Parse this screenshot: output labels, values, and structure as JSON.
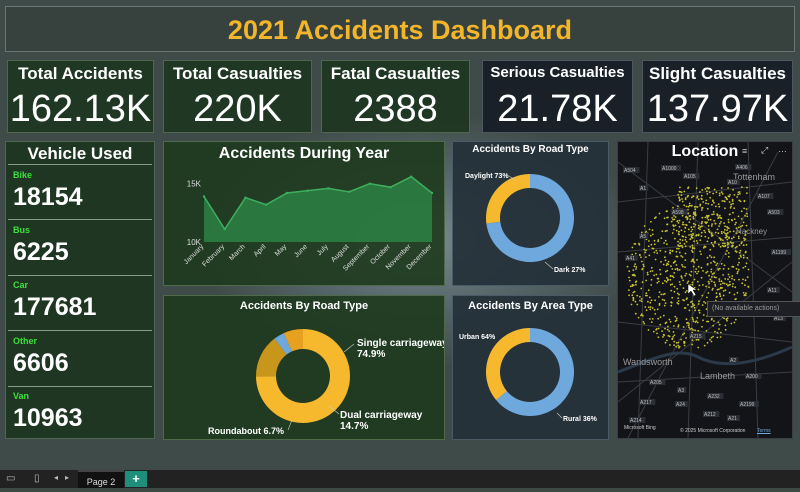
{
  "dashboard": {
    "title": "2021 Accidents Dashboard"
  },
  "kpis": [
    {
      "label": "Total Accidents",
      "value": "162.13K"
    },
    {
      "label": "Total Casualties",
      "value": "220K"
    },
    {
      "label": "Fatal Casualties",
      "value": "2388"
    },
    {
      "label": "Serious Casualties",
      "value": "21.78K"
    },
    {
      "label": "Slight Casualties",
      "value": "137.97K"
    }
  ],
  "vehicles": {
    "title": "Vehicle Used",
    "items": [
      {
        "name": "Bike",
        "value": "18154"
      },
      {
        "name": "Bus",
        "value": "6225"
      },
      {
        "name": "Car",
        "value": "177681"
      },
      {
        "name": "Other",
        "value": "6606"
      },
      {
        "name": "Van",
        "value": "10963"
      }
    ]
  },
  "chart_data": [
    {
      "type": "area",
      "title": "Accidents During Year",
      "categories": [
        "January",
        "February",
        "March",
        "April",
        "May",
        "June",
        "July",
        "August",
        "September",
        "October",
        "November",
        "December"
      ],
      "values": [
        13.9,
        11.1,
        13.8,
        13.2,
        14.2,
        14.4,
        14.6,
        14.3,
        15.0,
        14.7,
        15.6,
        14.2
      ],
      "ytick_labels": [
        "15K",
        "10K"
      ],
      "yticks": [
        15,
        10
      ],
      "ylim": [
        10,
        16
      ],
      "color": "#2e8b4a",
      "grid": false
    },
    {
      "type": "pie",
      "title": "Accidents By Road Type",
      "donut": true,
      "slices": [
        {
          "label": "Daylight",
          "pct": "73%",
          "value": 73,
          "color": "#6fa8dc"
        },
        {
          "label": "Dark",
          "pct": "27%",
          "value": 27,
          "color": "#f6b92d"
        }
      ]
    },
    {
      "type": "pie",
      "title": "Accidents By Road Type",
      "donut": true,
      "slices": [
        {
          "label": "Single carriageway",
          "pct": "74.9%",
          "value": 74.9,
          "color": "#f6b92d"
        },
        {
          "label": "Dual carriageway",
          "pct": "14.7%",
          "value": 14.7,
          "color": "#c8961a"
        },
        {
          "label": "",
          "pct": "",
          "value": 3.7,
          "color": "#6fa8dc"
        },
        {
          "label": "Roundabout",
          "pct": "6.7%",
          "value": 6.7,
          "color": "#e8a020"
        }
      ]
    },
    {
      "type": "pie",
      "title": "Accidents By Area Type",
      "donut": true,
      "slices": [
        {
          "label": "Urban",
          "pct": "64%",
          "value": 64,
          "color": "#6fa8dc"
        },
        {
          "label": "Rural",
          "pct": "36%",
          "value": 36,
          "color": "#f6b92d"
        }
      ]
    }
  ],
  "map": {
    "title": "Location",
    "labels": [
      "Tottenham",
      "Hackney",
      "Wandsworth",
      "Lambeth"
    ],
    "road_labels": [
      "A504",
      "A1000",
      "A406",
      "A105",
      "A10",
      "A107",
      "A1",
      "A598",
      "A5",
      "A41",
      "A503",
      "A1199",
      "A11",
      "A13",
      "A3",
      "A205",
      "A217",
      "A24",
      "A214",
      "A2",
      "A232",
      "A2199",
      "A212",
      "A21",
      "A200",
      "A215"
    ],
    "tooltip": "(No available actions)",
    "attribution": "© 2025 Microsoft Corporation",
    "terms": "Terms",
    "provider": "Microsoft Bing",
    "dot_color": "#c9c230"
  },
  "footer": {
    "page_tab": "Page 2",
    "add": "+"
  }
}
